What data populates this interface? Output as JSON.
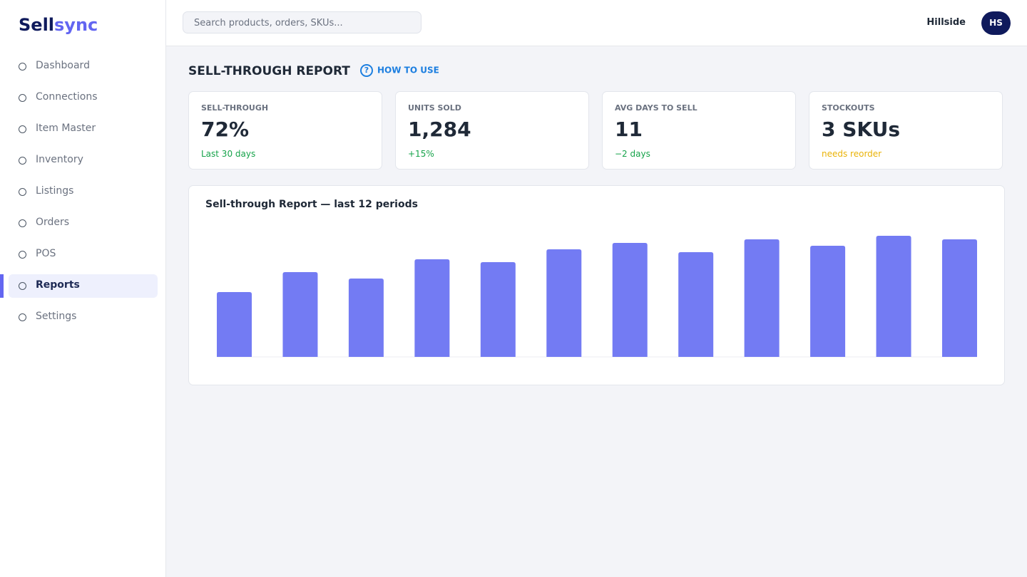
{
  "brand": {
    "first": "Sell",
    "second": "sync"
  },
  "search_placeholder": "Search products, orders, SKUs...",
  "user": {
    "name": "Hillside",
    "initials": "HS"
  },
  "nav": [
    {
      "label": "Dashboard"
    },
    {
      "label": "Connections"
    },
    {
      "label": "Item Master"
    },
    {
      "label": "Inventory"
    },
    {
      "label": "Listings"
    },
    {
      "label": "Orders"
    },
    {
      "label": "POS"
    },
    {
      "label": "Reports",
      "active": true
    },
    {
      "label": "Settings"
    }
  ],
  "page": {
    "title": "SELL-THROUGH REPORT",
    "help": "HOW TO USE"
  },
  "kpis": [
    {
      "label": "SELL-THROUGH",
      "value": "72%",
      "note": "Last 30 days",
      "note_color": "#16a34a"
    },
    {
      "label": "UNITS SOLD",
      "value": "1,284",
      "note": "+15%",
      "note_color": "#16a34a"
    },
    {
      "label": "AVG DAYS TO SELL",
      "value": "11",
      "note": "−2 days",
      "note_color": "#16a34a"
    },
    {
      "label": "STOCKOUTS",
      "value": "3 SKUs",
      "note": "needs reorder",
      "note_color": "#eab308"
    }
  ],
  "chart_data": {
    "type": "bar",
    "title": "Sell-through Report — last 12 periods",
    "values": [
      91,
      119,
      110,
      137,
      133,
      151,
      160,
      147,
      165,
      156,
      170,
      165
    ],
    "color": "#737bf3",
    "ylim": [
      0,
      190
    ]
  }
}
